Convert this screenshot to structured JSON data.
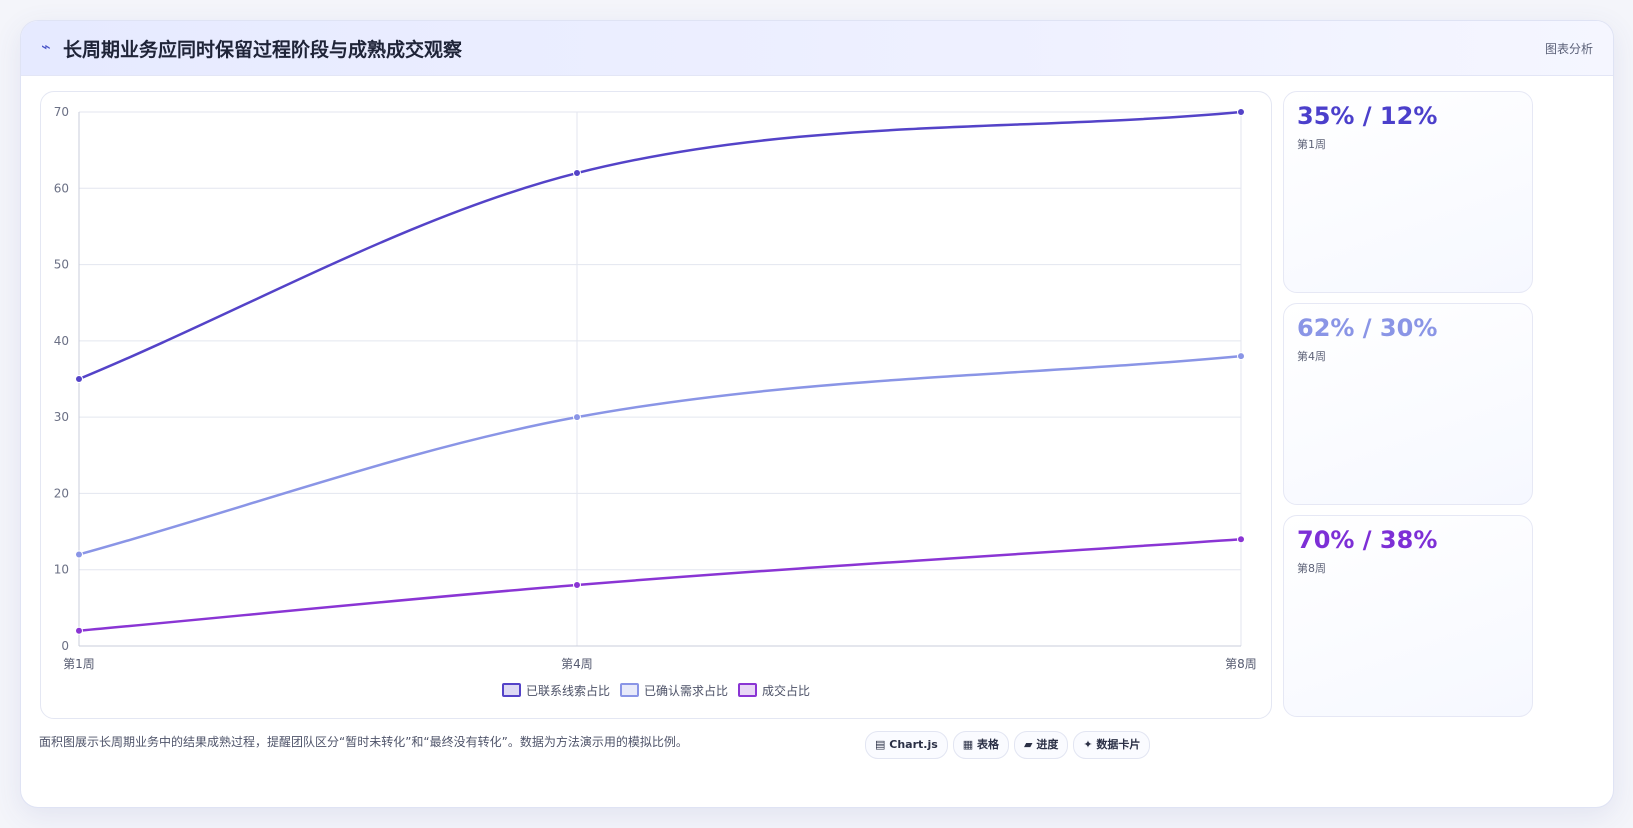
{
  "header": {
    "icon": "chart-line-icon",
    "title": "长周期业务应同时保留过程阶段与成熟成交观察",
    "tag": "图表分析"
  },
  "chart_data": {
    "type": "line",
    "categories": [
      "第1周",
      "第4周",
      "第8周"
    ],
    "series": [
      {
        "name": "已联系线索占比",
        "values": [
          35,
          62,
          70
        ],
        "color": "#5443c8"
      },
      {
        "name": "已确认需求占比",
        "values": [
          12,
          30,
          38
        ],
        "color": "#8a95e6"
      },
      {
        "name": "成交占比",
        "values": [
          2,
          8,
          14
        ],
        "color": "#8a35d4"
      }
    ],
    "ylim": [
      0,
      70
    ],
    "yticks": [
      0,
      10,
      20,
      30,
      40,
      50,
      60,
      70
    ],
    "grid": true,
    "legend": "bottom"
  },
  "stats": [
    {
      "value": "35% / 12%",
      "label": "第1周",
      "color": "#4b3fcb"
    },
    {
      "value": "62% / 30%",
      "label": "第4周",
      "color": "#8a95e6"
    },
    {
      "value": "70% / 38%",
      "label": "第8周",
      "color": "#7d2fd6"
    }
  ],
  "footer": {
    "note": "面积图展示长周期业务中的结果成熟过程，提醒团队区分“暂时未转化”和“最终没有转化”。数据为方法演示用的模拟比例。",
    "chips": [
      {
        "icon": "▤",
        "label": "Chart.js"
      },
      {
        "icon": "▦",
        "label": "表格"
      },
      {
        "icon": "▰",
        "label": "进度"
      },
      {
        "icon": "✦",
        "label": "数据卡片"
      }
    ]
  }
}
